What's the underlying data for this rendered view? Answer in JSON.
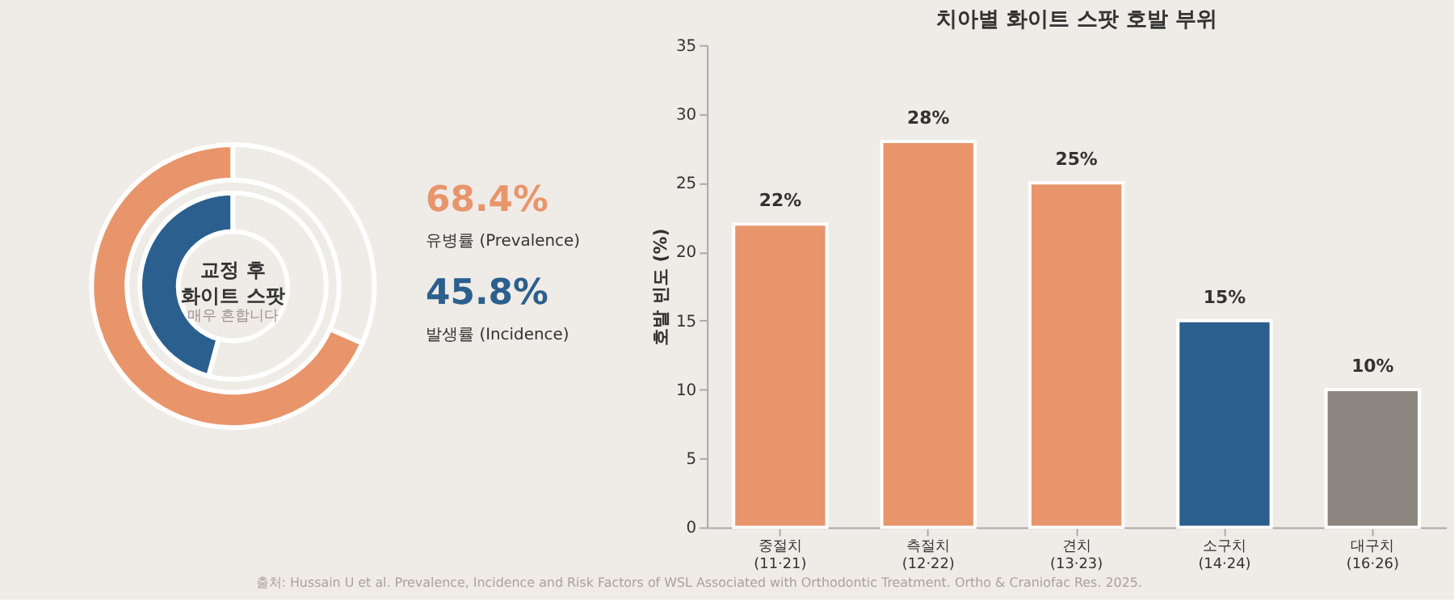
{
  "chart_data": [
    {
      "type": "donut",
      "title": "교정 후 화이트 스팟",
      "subtitle": "매우 흔합니다",
      "series": [
        {
          "name": "유병률 (Prevalence)",
          "values": [
            68.4,
            31.6
          ],
          "colors": [
            "#e8956b",
            "#efebe6"
          ]
        },
        {
          "name": "발생률 (Incidence)",
          "values": [
            45.8,
            54.2
          ],
          "colors": [
            "#2b5f8e",
            "#efebe6"
          ]
        }
      ],
      "annotations": [
        "68.4%",
        "45.8%"
      ]
    },
    {
      "type": "bar",
      "title": "치아별 화이트 스팟 호발 부위",
      "ylabel": "호발 빈도 (%)",
      "categories": [
        "중절치 (11·21)",
        "측절치 (12·22)",
        "견치 (13·23)",
        "소구치 (14·24)",
        "대구치 (16·26)"
      ],
      "values": [
        22,
        28,
        25,
        15,
        10
      ],
      "colors": [
        "#e8956b",
        "#e8956b",
        "#e8956b",
        "#2b5f8e",
        "#8c8680"
      ],
      "value_labels": [
        "22%",
        "28%",
        "25%",
        "15%",
        "10%"
      ],
      "ylim": [
        0,
        35
      ],
      "yticks": [
        0,
        5,
        10,
        15,
        20,
        25,
        30,
        35
      ],
      "grid": false,
      "annotations": [
        "출처: Hussain U et al. Prevalence, Incidence and Risk Factors of WSL Associated with Orthodontic Treatment. Ortho & Craniofac Res. 2025."
      ]
    }
  ]
}
